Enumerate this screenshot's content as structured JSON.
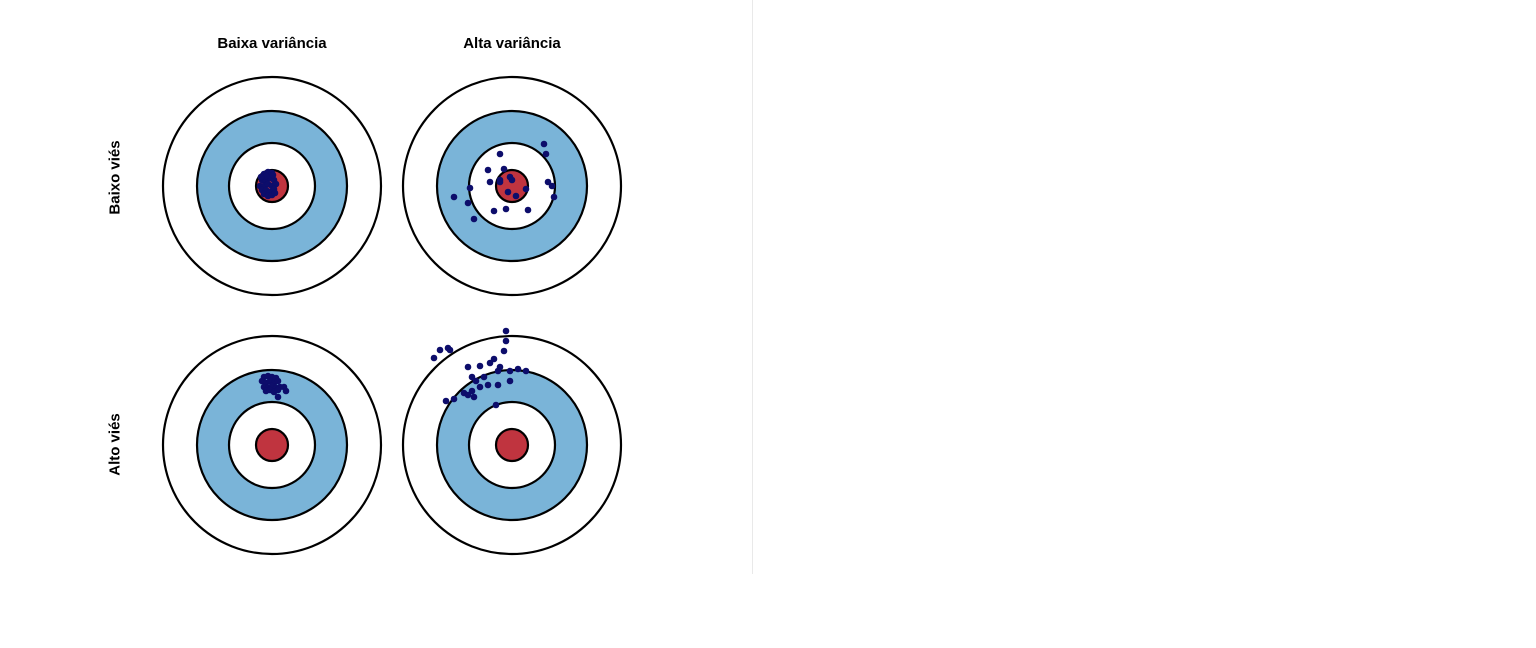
{
  "columns": [
    {
      "label": "Baixa variância"
    },
    {
      "label": "Alta variância"
    }
  ],
  "rows": [
    {
      "label": "Baixo viés"
    },
    {
      "label": "Alto viés"
    }
  ],
  "colors": {
    "outer_ring": "#ffffff",
    "blue_ring": "#7ab4d8",
    "inner_ring": "#ffffff",
    "bullseye": "#c0343f",
    "ring_stroke": "#000000",
    "dot": "#0d0d6b"
  },
  "targets": [
    {
      "name": "low-bias-low-variance",
      "row": 0,
      "col": 0,
      "shots": [
        [
          -8,
          -12
        ],
        [
          -4,
          -14
        ],
        [
          0,
          -13
        ],
        [
          -10,
          -6
        ],
        [
          -6,
          -5
        ],
        [
          -2,
          -8
        ],
        [
          2,
          -6
        ],
        [
          -12,
          0
        ],
        [
          -8,
          0
        ],
        [
          -4,
          -2
        ],
        [
          0,
          0
        ],
        [
          4,
          -2
        ],
        [
          -10,
          4
        ],
        [
          -6,
          4
        ],
        [
          -2,
          6
        ],
        [
          2,
          3
        ],
        [
          -8,
          8
        ],
        [
          -4,
          10
        ],
        [
          0,
          9
        ],
        [
          3,
          7
        ],
        [
          -6,
          -10
        ],
        [
          1,
          -11
        ],
        [
          -11,
          -9
        ]
      ]
    },
    {
      "name": "low-bias-high-variance",
      "row": 0,
      "col": 1,
      "shots": [
        [
          -12,
          -32
        ],
        [
          -24,
          -16
        ],
        [
          -8,
          -17
        ],
        [
          -12,
          -6
        ],
        [
          -22,
          -4
        ],
        [
          -2,
          -9
        ],
        [
          -42,
          2
        ],
        [
          -58,
          11
        ],
        [
          -44,
          17
        ],
        [
          -38,
          33
        ],
        [
          -18,
          25
        ],
        [
          -6,
          23
        ],
        [
          16,
          24
        ],
        [
          14,
          3
        ],
        [
          4,
          10
        ],
        [
          -4,
          6
        ],
        [
          32,
          -42
        ],
        [
          34,
          -32
        ],
        [
          36,
          -4
        ],
        [
          40,
          0
        ],
        [
          42,
          11
        ],
        [
          0,
          -6
        ],
        [
          -12,
          -4
        ]
      ]
    },
    {
      "name": "high-bias-low-variance",
      "row": 1,
      "col": 0,
      "shots": [
        [
          -8,
          -68
        ],
        [
          -4,
          -69
        ],
        [
          0,
          -68
        ],
        [
          4,
          -67
        ],
        [
          -10,
          -64
        ],
        [
          -6,
          -62
        ],
        [
          -2,
          -64
        ],
        [
          2,
          -62
        ],
        [
          6,
          -64
        ],
        [
          -8,
          -58
        ],
        [
          -4,
          -57
        ],
        [
          0,
          -59
        ],
        [
          4,
          -57
        ],
        [
          8,
          -58
        ],
        [
          -6,
          -54
        ],
        [
          -2,
          -55
        ],
        [
          2,
          -53
        ],
        [
          6,
          -55
        ],
        [
          12,
          -58
        ],
        [
          14,
          -54
        ],
        [
          6,
          -48
        ]
      ]
    },
    {
      "name": "high-bias-high-variance",
      "row": 1,
      "col": 1,
      "shots": [
        [
          -62,
          -95
        ],
        [
          -78,
          -87
        ],
        [
          -72,
          -95
        ],
        [
          -64,
          -97
        ],
        [
          -6,
          -114
        ],
        [
          -6,
          -104
        ],
        [
          -8,
          -94
        ],
        [
          -18,
          -86
        ],
        [
          -32,
          -79
        ],
        [
          -22,
          -82
        ],
        [
          -12,
          -78
        ],
        [
          -44,
          -78
        ],
        [
          -40,
          -68
        ],
        [
          -36,
          -64
        ],
        [
          -28,
          -68
        ],
        [
          -32,
          -58
        ],
        [
          -24,
          -60
        ],
        [
          -14,
          -74
        ],
        [
          -2,
          -74
        ],
        [
          6,
          -76
        ],
        [
          14,
          -74
        ],
        [
          -14,
          -60
        ],
        [
          -2,
          -64
        ],
        [
          -40,
          -54
        ],
        [
          -48,
          -52
        ],
        [
          -58,
          -46
        ],
        [
          -66,
          -44
        ],
        [
          -44,
          -50
        ],
        [
          -38,
          -48
        ],
        [
          -16,
          -40
        ]
      ]
    }
  ]
}
